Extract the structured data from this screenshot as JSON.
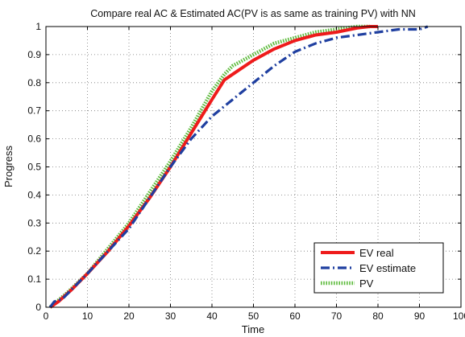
{
  "chart_data": {
    "type": "line",
    "title": "Compare real AC & Estimated AC(PV is as same as training PV) with NN",
    "xlabel": "Time",
    "ylabel": "Progress",
    "xlim": [
      0,
      100
    ],
    "ylim": [
      0,
      1
    ],
    "xticks": [
      0,
      10,
      20,
      30,
      40,
      50,
      60,
      70,
      80,
      90,
      100
    ],
    "yticks": [
      0,
      0.1,
      0.2,
      0.3,
      0.4,
      0.5,
      0.6,
      0.7,
      0.8,
      0.9,
      1
    ],
    "grid": true,
    "legend_position": "bottom-right",
    "series": [
      {
        "name": "EV real",
        "color": "#ee1b1b",
        "style": "solid",
        "points": [
          [
            1,
            0
          ],
          [
            3,
            0.02
          ],
          [
            6,
            0.06
          ],
          [
            10,
            0.12
          ],
          [
            15,
            0.2
          ],
          [
            20,
            0.29
          ],
          [
            25,
            0.39
          ],
          [
            30,
            0.5
          ],
          [
            35,
            0.62
          ],
          [
            40,
            0.74
          ],
          [
            43,
            0.81
          ],
          [
            45,
            0.83
          ],
          [
            50,
            0.88
          ],
          [
            55,
            0.92
          ],
          [
            60,
            0.95
          ],
          [
            65,
            0.97
          ],
          [
            70,
            0.98
          ],
          [
            75,
            0.995
          ],
          [
            78,
            1
          ],
          [
            80,
            1
          ]
        ]
      },
      {
        "name": "EV estimate",
        "color": "#1f3fa0",
        "style": "dashdot",
        "points": [
          [
            1,
            0
          ],
          [
            2,
            0.02
          ],
          [
            4,
            0.03
          ],
          [
            6,
            0.06
          ],
          [
            10,
            0.12
          ],
          [
            15,
            0.2
          ],
          [
            20,
            0.28
          ],
          [
            25,
            0.39
          ],
          [
            30,
            0.5
          ],
          [
            35,
            0.6
          ],
          [
            40,
            0.68
          ],
          [
            45,
            0.74
          ],
          [
            50,
            0.8
          ],
          [
            55,
            0.86
          ],
          [
            60,
            0.91
          ],
          [
            65,
            0.94
          ],
          [
            70,
            0.96
          ],
          [
            75,
            0.97
          ],
          [
            80,
            0.98
          ],
          [
            85,
            0.99
          ],
          [
            90,
            0.99
          ],
          [
            92,
            1
          ]
        ]
      },
      {
        "name": "PV",
        "color": "#5dbb3c",
        "style": "dotted",
        "points": [
          [
            1,
            0
          ],
          [
            5,
            0.05
          ],
          [
            10,
            0.12
          ],
          [
            15,
            0.21
          ],
          [
            20,
            0.3
          ],
          [
            25,
            0.41
          ],
          [
            30,
            0.52
          ],
          [
            35,
            0.64
          ],
          [
            40,
            0.77
          ],
          [
            43,
            0.83
          ],
          [
            45,
            0.86
          ],
          [
            50,
            0.9
          ],
          [
            55,
            0.94
          ],
          [
            60,
            0.96
          ],
          [
            65,
            0.98
          ],
          [
            70,
            0.99
          ],
          [
            75,
            1
          ],
          [
            78,
            1
          ]
        ]
      }
    ]
  }
}
